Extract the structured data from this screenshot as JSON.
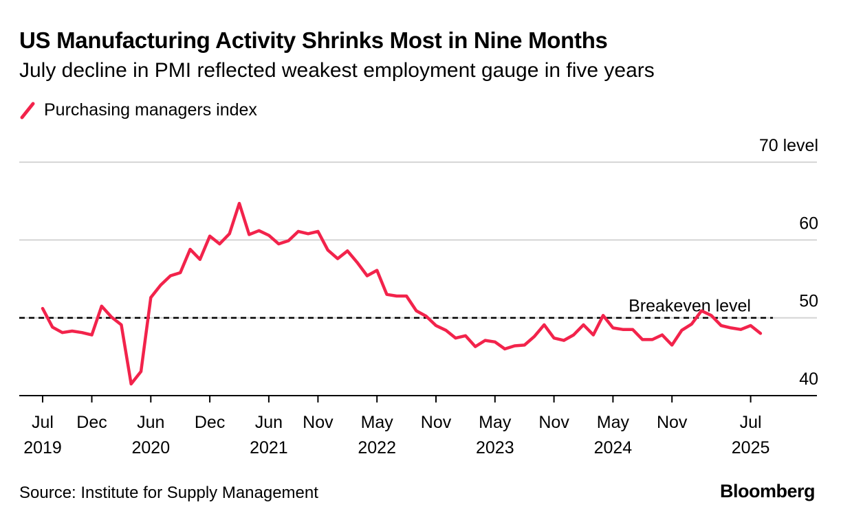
{
  "header": {
    "title": "US Manufacturing Activity Shrinks Most in Nine Months",
    "subtitle": "July decline in PMI reflected weakest employment gauge in five years"
  },
  "legend": {
    "label": "Purchasing managers index",
    "color": "#f2234b",
    "icon": "line-swatch-icon"
  },
  "footer": {
    "source": "Source: Institute for Supply Management",
    "brand": "Bloomberg"
  },
  "chart_data": {
    "type": "line",
    "title": "US Manufacturing Activity Shrinks Most in Nine Months",
    "ylabel": "level",
    "y_unit_label": "70 level",
    "ylim": [
      40,
      70
    ],
    "yticks": [
      40,
      50,
      60,
      70
    ],
    "grid": true,
    "x_start": "2019-07",
    "x_ticks": [
      {
        "index": 0,
        "month": "Jul",
        "year": "2019"
      },
      {
        "index": 5,
        "month": "Dec",
        "year": ""
      },
      {
        "index": 11,
        "month": "Jun",
        "year": "2020"
      },
      {
        "index": 17,
        "month": "Dec",
        "year": ""
      },
      {
        "index": 23,
        "month": "Jun",
        "year": "2021"
      },
      {
        "index": 28,
        "month": "Nov",
        "year": ""
      },
      {
        "index": 34,
        "month": "May",
        "year": "2022"
      },
      {
        "index": 40,
        "month": "Nov",
        "year": ""
      },
      {
        "index": 46,
        "month": "May",
        "year": "2023"
      },
      {
        "index": 52,
        "month": "Nov",
        "year": ""
      },
      {
        "index": 58,
        "month": "May",
        "year": "2024"
      },
      {
        "index": 64,
        "month": "Nov",
        "year": ""
      },
      {
        "index": 72,
        "month": "Jul",
        "year": "2025"
      }
    ],
    "reference_line": {
      "value": 50,
      "label": "Breakeven level",
      "style": "dashed"
    },
    "series": [
      {
        "name": "Purchasing managers index",
        "color": "#f2234b",
        "values": [
          51.2,
          48.8,
          48.1,
          48.3,
          48.1,
          47.8,
          51.5,
          50.1,
          49.1,
          41.5,
          43.1,
          52.6,
          54.2,
          55.4,
          55.8,
          58.8,
          57.5,
          60.5,
          59.5,
          60.8,
          64.7,
          60.7,
          61.2,
          60.6,
          59.5,
          59.9,
          61.1,
          60.8,
          61.1,
          58.7,
          57.6,
          58.6,
          57.1,
          55.4,
          56.1,
          53.0,
          52.8,
          52.8,
          50.9,
          50.2,
          49.0,
          48.4,
          47.4,
          47.7,
          46.3,
          47.1,
          46.9,
          46.0,
          46.4,
          46.5,
          47.6,
          49.1,
          47.4,
          47.1,
          47.8,
          49.1,
          47.8,
          50.3,
          48.7,
          48.5,
          48.5,
          47.2,
          47.2,
          47.8,
          46.5,
          48.4,
          49.2,
          50.9,
          50.3,
          49.0,
          48.7,
          48.5,
          49.0,
          48.0
        ]
      }
    ]
  }
}
